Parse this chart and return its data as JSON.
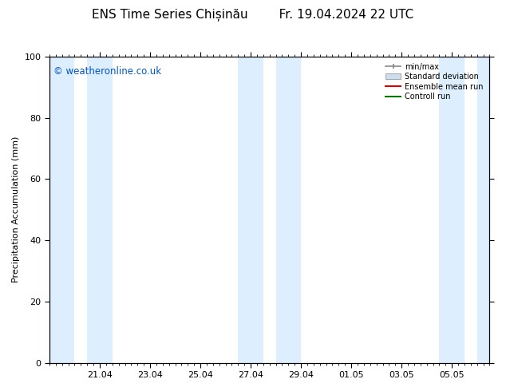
{
  "title": "ENS Time Series Chișinău        Fr. 19.04.2024 22 UTC",
  "ylabel": "Precipitation Accumulation (mm)",
  "ylim": [
    0,
    100
  ],
  "yticks": [
    0,
    20,
    40,
    60,
    80,
    100
  ],
  "background_color": "#ffffff",
  "plot_bg_color": "#ffffff",
  "band_color": "#ddeeff",
  "watermark": "© weatheronline.co.uk",
  "watermark_color": "#0055cc",
  "legend_labels": [
    "min/max",
    "Standard deviation",
    "Ensemble mean run",
    "Controll run"
  ],
  "x_tick_labels": [
    "21.04",
    "23.04",
    "25.04",
    "27.04",
    "29.04",
    "01.05",
    "03.05",
    "05.05"
  ],
  "x_tick_positions": [
    2,
    4,
    6,
    8,
    10,
    12,
    14,
    16
  ],
  "xlim": [
    0,
    17.5
  ],
  "shaded_bands": [
    [
      0,
      1.0
    ],
    [
      1.5,
      2.5
    ],
    [
      7.5,
      8.5
    ],
    [
      9.0,
      10.0
    ],
    [
      15.5,
      16.5
    ],
    [
      17.0,
      17.5
    ]
  ],
  "title_fontsize": 11,
  "tick_fontsize": 8,
  "label_fontsize": 8
}
